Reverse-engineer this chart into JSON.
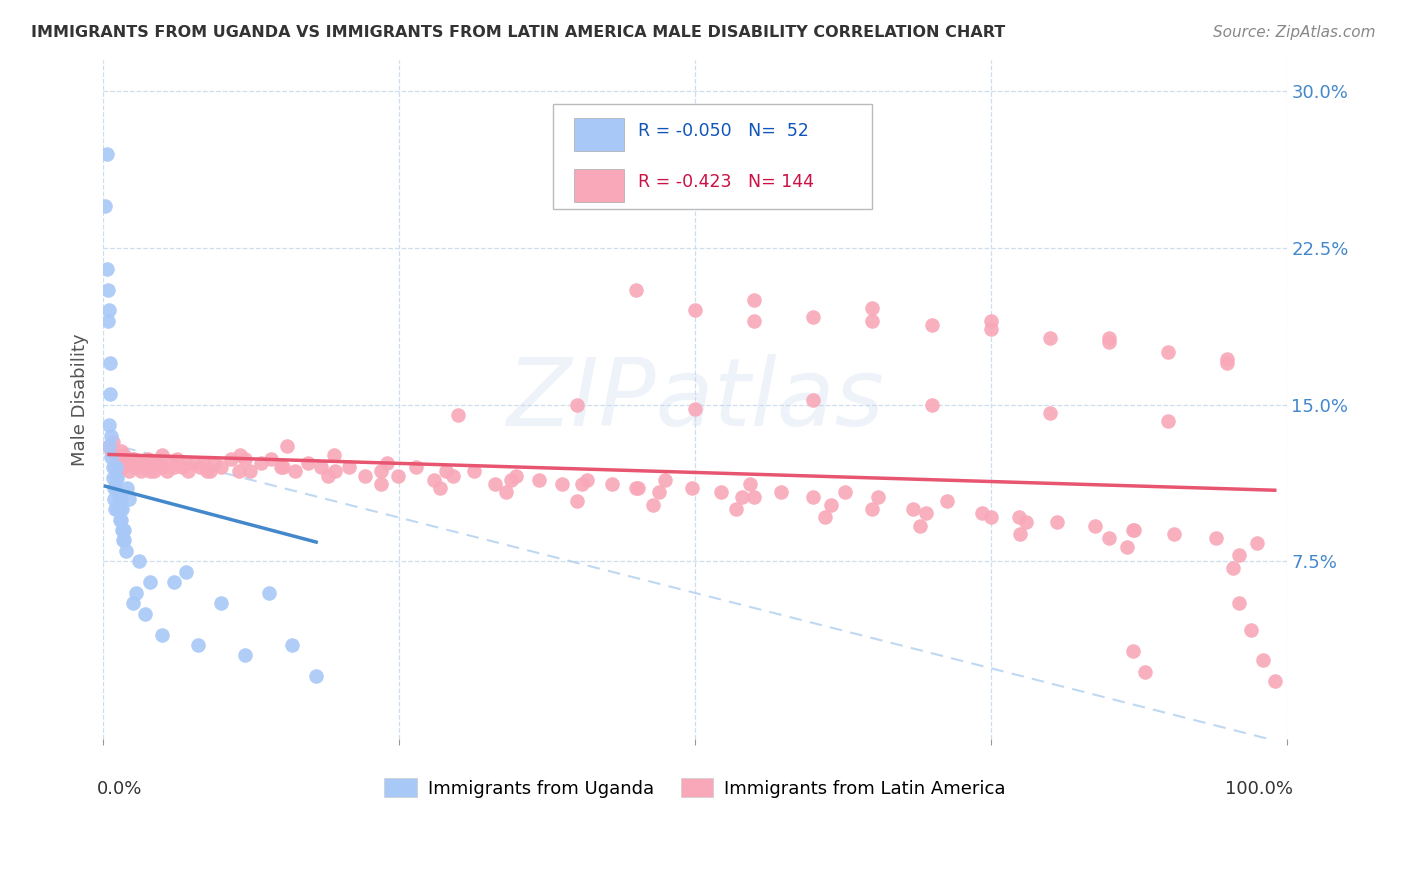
{
  "title": "IMMIGRANTS FROM UGANDA VS IMMIGRANTS FROM LATIN AMERICA MALE DISABILITY CORRELATION CHART",
  "source": "Source: ZipAtlas.com",
  "ylabel": "Male Disability",
  "xlim": [
    0.0,
    1.0
  ],
  "ylim": [
    -0.01,
    0.315
  ],
  "yticks": [
    0.075,
    0.15,
    0.225,
    0.3
  ],
  "ytick_labels": [
    "7.5%",
    "15.0%",
    "22.5%",
    "30.0%"
  ],
  "legend_uganda_r": "-0.050",
  "legend_uganda_n": "52",
  "legend_latin_r": "-0.423",
  "legend_latin_n": "144",
  "color_uganda": "#a8c8f8",
  "color_uganda_line": "#4488cc",
  "color_latin": "#f8a8b8",
  "color_latin_line": "#e85570",
  "color_dashed": "#b8d4f0",
  "background_color": "#ffffff",
  "watermark": "ZIPatlas",
  "uganda_scatter_x": [
    0.002,
    0.003,
    0.003,
    0.004,
    0.004,
    0.005,
    0.005,
    0.005,
    0.006,
    0.006,
    0.007,
    0.007,
    0.008,
    0.008,
    0.009,
    0.009,
    0.01,
    0.01,
    0.01,
    0.011,
    0.011,
    0.012,
    0.012,
    0.013,
    0.013,
    0.014,
    0.014,
    0.015,
    0.015,
    0.016,
    0.016,
    0.017,
    0.017,
    0.018,
    0.018,
    0.019,
    0.02,
    0.022,
    0.025,
    0.028,
    0.03,
    0.035,
    0.04,
    0.05,
    0.06,
    0.07,
    0.08,
    0.1,
    0.12,
    0.14,
    0.16,
    0.18
  ],
  "uganda_scatter_y": [
    0.245,
    0.27,
    0.215,
    0.205,
    0.19,
    0.195,
    0.13,
    0.14,
    0.155,
    0.17,
    0.125,
    0.135,
    0.12,
    0.115,
    0.11,
    0.105,
    0.12,
    0.11,
    0.1,
    0.115,
    0.12,
    0.1,
    0.115,
    0.105,
    0.1,
    0.1,
    0.095,
    0.105,
    0.095,
    0.09,
    0.1,
    0.09,
    0.085,
    0.09,
    0.085,
    0.08,
    0.11,
    0.105,
    0.055,
    0.06,
    0.075,
    0.05,
    0.065,
    0.04,
    0.065,
    0.07,
    0.035,
    0.055,
    0.03,
    0.06,
    0.035,
    0.02
  ],
  "latin_scatter_x": [
    0.005,
    0.007,
    0.008,
    0.01,
    0.012,
    0.013,
    0.015,
    0.016,
    0.018,
    0.02,
    0.022,
    0.025,
    0.027,
    0.03,
    0.032,
    0.035,
    0.038,
    0.04,
    0.043,
    0.046,
    0.05,
    0.054,
    0.058,
    0.062,
    0.067,
    0.072,
    0.077,
    0.082,
    0.088,
    0.094,
    0.1,
    0.108,
    0.116,
    0.124,
    0.133,
    0.142,
    0.152,
    0.162,
    0.173,
    0.184,
    0.196,
    0.208,
    0.221,
    0.235,
    0.249,
    0.264,
    0.28,
    0.296,
    0.313,
    0.331,
    0.349,
    0.368,
    0.388,
    0.409,
    0.43,
    0.452,
    0.475,
    0.498,
    0.522,
    0.547,
    0.573,
    0.6,
    0.627,
    0.655,
    0.684,
    0.713,
    0.743,
    0.774,
    0.806,
    0.838,
    0.871,
    0.905,
    0.94,
    0.975,
    0.015,
    0.025,
    0.035,
    0.05,
    0.07,
    0.09,
    0.12,
    0.155,
    0.195,
    0.24,
    0.29,
    0.345,
    0.405,
    0.47,
    0.54,
    0.615,
    0.695,
    0.78,
    0.87,
    0.96,
    0.04,
    0.06,
    0.085,
    0.115,
    0.15,
    0.19,
    0.235,
    0.285,
    0.34,
    0.4,
    0.465,
    0.535,
    0.61,
    0.69,
    0.775,
    0.865,
    0.955,
    0.45,
    0.55,
    0.65,
    0.75,
    0.85,
    0.3,
    0.4,
    0.5,
    0.6,
    0.7,
    0.8,
    0.9,
    0.55,
    0.65,
    0.75,
    0.85,
    0.95,
    0.5,
    0.6,
    0.7,
    0.8,
    0.9,
    0.45,
    0.55,
    0.65,
    0.75,
    0.85,
    0.95,
    0.96,
    0.97,
    0.98,
    0.99,
    0.87,
    0.88
  ],
  "latin_scatter_y": [
    0.13,
    0.128,
    0.132,
    0.126,
    0.122,
    0.118,
    0.124,
    0.12,
    0.126,
    0.122,
    0.118,
    0.124,
    0.12,
    0.122,
    0.118,
    0.12,
    0.124,
    0.122,
    0.118,
    0.122,
    0.12,
    0.118,
    0.122,
    0.124,
    0.12,
    0.118,
    0.122,
    0.12,
    0.118,
    0.122,
    0.12,
    0.124,
    0.126,
    0.118,
    0.122,
    0.124,
    0.12,
    0.118,
    0.122,
    0.12,
    0.118,
    0.12,
    0.116,
    0.118,
    0.116,
    0.12,
    0.114,
    0.116,
    0.118,
    0.112,
    0.116,
    0.114,
    0.112,
    0.114,
    0.112,
    0.11,
    0.114,
    0.11,
    0.108,
    0.112,
    0.108,
    0.106,
    0.108,
    0.106,
    0.1,
    0.104,
    0.098,
    0.096,
    0.094,
    0.092,
    0.09,
    0.088,
    0.086,
    0.084,
    0.128,
    0.124,
    0.12,
    0.126,
    0.122,
    0.118,
    0.124,
    0.13,
    0.126,
    0.122,
    0.118,
    0.114,
    0.112,
    0.108,
    0.106,
    0.102,
    0.098,
    0.094,
    0.09,
    0.078,
    0.118,
    0.12,
    0.122,
    0.118,
    0.12,
    0.116,
    0.112,
    0.11,
    0.108,
    0.104,
    0.102,
    0.1,
    0.096,
    0.092,
    0.088,
    0.082,
    0.072,
    0.11,
    0.106,
    0.1,
    0.096,
    0.086,
    0.145,
    0.15,
    0.148,
    0.152,
    0.15,
    0.146,
    0.142,
    0.19,
    0.19,
    0.186,
    0.18,
    0.172,
    0.195,
    0.192,
    0.188,
    0.182,
    0.175,
    0.205,
    0.2,
    0.196,
    0.19,
    0.182,
    0.17,
    0.055,
    0.042,
    0.028,
    0.018,
    0.032,
    0.022
  ]
}
